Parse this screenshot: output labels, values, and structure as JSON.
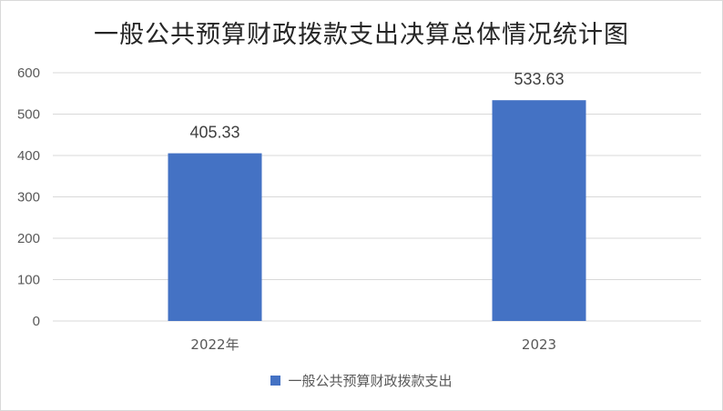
{
  "chart_data": {
    "type": "bar",
    "title": "一般公共预算财政拨款支出决算总体情况统计图",
    "categories": [
      "2022年",
      "2023"
    ],
    "series": [
      {
        "name": "一般公共预算财政拨款支出",
        "values": [
          405.33,
          533.63
        ]
      }
    ],
    "data_labels": [
      "405.33",
      "533.63"
    ],
    "ylim": [
      0,
      600
    ],
    "yticks": [
      0,
      100,
      200,
      300,
      400,
      500,
      600
    ],
    "grid": true,
    "legend_position": "bottom",
    "colors": {
      "bar": "#4472C4",
      "grid": "#d9d9d9"
    }
  }
}
